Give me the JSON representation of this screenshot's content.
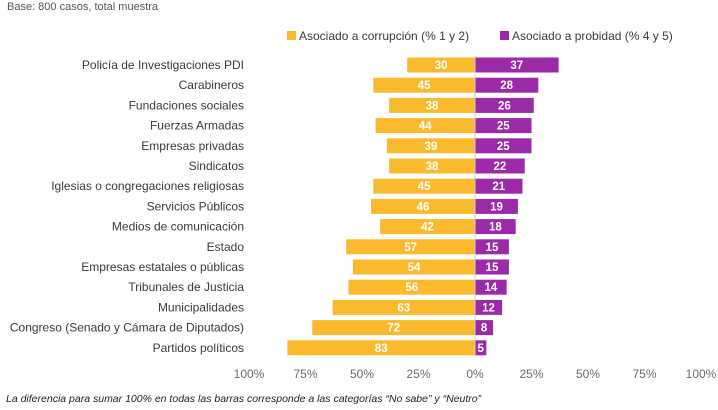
{
  "header": {
    "base_note": "Base: 800 casos, total muestra"
  },
  "footer": {
    "note": "La diferencia para sumar 100% en todas las barras corresponde a las categorías “No sabe” y “Neutro”"
  },
  "chart_data": {
    "type": "bar",
    "orientation": "horizontal-diverging",
    "categories": [
      "Policía de Investigaciones PDI",
      "Carabineros",
      "Fundaciones sociales",
      "Fuerzas Armadas",
      "Empresas privadas",
      "Sindicatos",
      "Iglesias o congregaciones religiosas",
      "Servicios Públicos",
      "Medios de comunicación",
      "Estado",
      "Empresas estatales o públicas",
      "Tribunales de Justicia",
      "Municipalidades",
      "Congreso (Senado y Cámara de Diputados)",
      "Partidos políticos"
    ],
    "series": [
      {
        "name": "Asociado a corrupción (% 1 y 2)",
        "color": "#FBBA2E",
        "direction": "negative",
        "values": [
          30,
          45,
          38,
          44,
          39,
          38,
          45,
          46,
          42,
          57,
          54,
          56,
          63,
          72,
          83
        ]
      },
      {
        "name": "Asociado a probidad (% 4 y 5)",
        "color": "#9B2AA8",
        "direction": "positive",
        "values": [
          37,
          28,
          26,
          25,
          25,
          22,
          21,
          19,
          18,
          15,
          15,
          14,
          12,
          8,
          5
        ]
      }
    ],
    "xlim": [
      -100,
      100
    ],
    "ticks": [
      -100,
      -75,
      -50,
      -25,
      0,
      25,
      50,
      75,
      100
    ],
    "tick_labels": [
      "100%",
      "75%",
      "50%",
      "25%",
      "0%",
      "25%",
      "50%",
      "75%",
      "100%"
    ],
    "legend_position": "top",
    "grid": false
  }
}
